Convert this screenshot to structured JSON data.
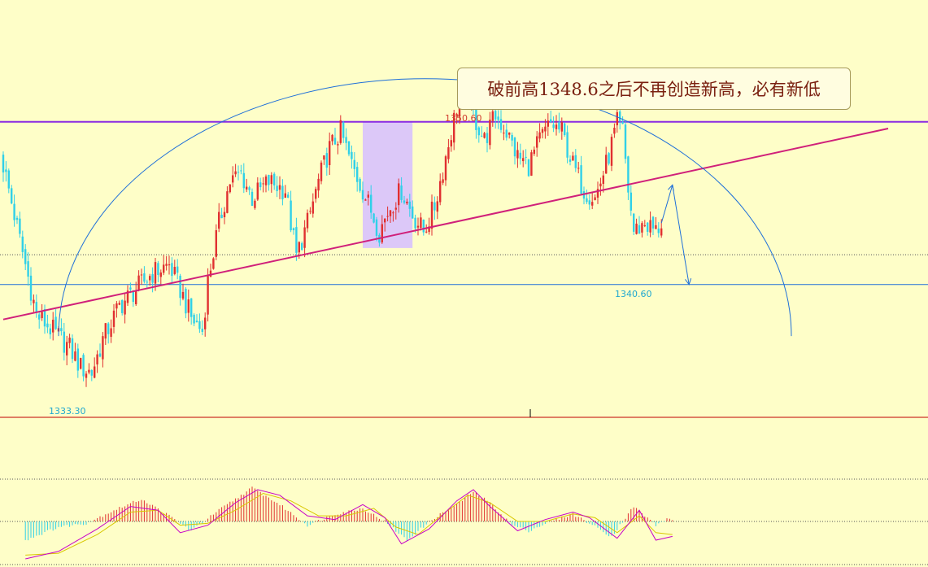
{
  "annotation": {
    "text": "破前高1348.6之后不再创造新高，必有新低"
  },
  "labels": {
    "high": "1350.60",
    "low": "1333.30",
    "recent_low": "1340.60"
  },
  "colors": {
    "background": "#fefec8",
    "candle_up": "#e03030",
    "candle_down": "#30d0e8",
    "resistance_line": "#8a2be2",
    "trend_line": "#d0207a",
    "arc": "#1e6fd9",
    "support_line": "#1e6fd9",
    "highlight_zone": "#dcc8f8",
    "panel_separator": "#c00000",
    "macd_dif": "#c800c8",
    "macd_dea": "#d8c800"
  },
  "chart_data": [
    {
      "type": "candlestick",
      "title": "",
      "xlabel": "",
      "ylabel": "",
      "ylim": [
        1331.0,
        1353.0
      ],
      "grid": false,
      "close_path": [
        [
          0,
          1346.0
        ],
        [
          6,
          1341.5
        ],
        [
          12,
          1337.0
        ],
        [
          18,
          1336.0
        ],
        [
          24,
          1335.0
        ],
        [
          28,
          1333.8
        ],
        [
          32,
          1333.5
        ],
        [
          36,
          1335.5
        ],
        [
          42,
          1337.5
        ],
        [
          48,
          1338.5
        ],
        [
          54,
          1339.5
        ],
        [
          60,
          1340.0
        ],
        [
          64,
          1338.5
        ],
        [
          68,
          1336.8
        ],
        [
          72,
          1336.0
        ],
        [
          74,
          1339.0
        ],
        [
          78,
          1342.5
        ],
        [
          82,
          1345.0
        ],
        [
          86,
          1345.5
        ],
        [
          90,
          1344.0
        ],
        [
          96,
          1345.0
        ],
        [
          102,
          1344.5
        ],
        [
          106,
          1340.5
        ],
        [
          110,
          1342.5
        ],
        [
          114,
          1345.0
        ],
        [
          118,
          1347.0
        ],
        [
          122,
          1348.0
        ],
        [
          126,
          1346.0
        ],
        [
          130,
          1344.5
        ],
        [
          136,
          1342.0
        ],
        [
          140,
          1343.5
        ],
        [
          144,
          1344.5
        ],
        [
          148,
          1343.0
        ],
        [
          152,
          1342.0
        ],
        [
          156,
          1343.5
        ],
        [
          160,
          1346.5
        ],
        [
          164,
          1349.5
        ],
        [
          168,
          1350.3
        ],
        [
          170,
          1349.0
        ],
        [
          174,
          1347.5
        ],
        [
          178,
          1349.0
        ],
        [
          182,
          1348.0
        ],
        [
          186,
          1346.5
        ],
        [
          190,
          1346.0
        ],
        [
          194,
          1347.5
        ],
        [
          198,
          1348.5
        ],
        [
          202,
          1348.0
        ],
        [
          206,
          1346.0
        ],
        [
          210,
          1344.5
        ],
        [
          214,
          1344.0
        ],
        [
          218,
          1346.0
        ],
        [
          222,
          1348.5
        ],
        [
          224,
          1348.0
        ],
        [
          226,
          1344.5
        ],
        [
          228,
          1342.0
        ],
        [
          232,
          1342.5
        ],
        [
          236,
          1342.0
        ],
        [
          238,
          1342.5
        ]
      ],
      "levels": {
        "resistance": 1348.6,
        "support": 1338.8,
        "lower_dotted": 1340.6
      },
      "highlight_zone": {
        "x_from": 130,
        "x_to": 148,
        "y_from": 1341.0,
        "y_to": 1348.6
      },
      "trend_line": {
        "from": [
          0,
          1336.7
        ],
        "to": [
          320,
          1348.2
        ]
      },
      "arc": {
        "x_from": 20,
        "x_to": 285,
        "peak_x": 150,
        "peak": 1351.2,
        "end": 1335.7
      },
      "projection": [
        [
          238,
          1342.5
        ],
        [
          242,
          1344.8
        ],
        [
          248,
          1338.8
        ]
      ]
    },
    {
      "type": "macd",
      "title": "",
      "ylim": [
        -1.0,
        1.0
      ],
      "zero": 0,
      "histogram_path": [
        [
          8,
          -0.5
        ],
        [
          20,
          -0.15
        ],
        [
          30,
          -0.05
        ],
        [
          40,
          0.3
        ],
        [
          50,
          0.6
        ],
        [
          60,
          0.15
        ],
        [
          68,
          -0.25
        ],
        [
          78,
          0.3
        ],
        [
          90,
          0.9
        ],
        [
          100,
          0.45
        ],
        [
          110,
          -0.1
        ],
        [
          120,
          0.2
        ],
        [
          130,
          0.35
        ],
        [
          138,
          0.0
        ],
        [
          146,
          -0.5
        ],
        [
          156,
          0.1
        ],
        [
          164,
          0.45
        ],
        [
          170,
          0.8
        ],
        [
          176,
          0.5
        ],
        [
          184,
          -0.1
        ],
        [
          190,
          -0.25
        ],
        [
          198,
          0.0
        ],
        [
          206,
          0.2
        ],
        [
          212,
          -0.05
        ],
        [
          220,
          -0.4
        ],
        [
          228,
          0.4
        ],
        [
          236,
          -0.1
        ],
        [
          240,
          0.05
        ]
      ],
      "series": [
        {
          "values": [
            [
              8,
              -1.0
            ],
            [
              20,
              -0.8
            ],
            [
              34,
              -0.2
            ],
            [
              46,
              0.4
            ],
            [
              56,
              0.3
            ],
            [
              64,
              -0.3
            ],
            [
              74,
              -0.1
            ],
            [
              84,
              0.5
            ],
            [
              92,
              0.85
            ],
            [
              100,
              0.7
            ],
            [
              110,
              0.15
            ],
            [
              120,
              0.05
            ],
            [
              130,
              0.45
            ],
            [
              138,
              0.1
            ],
            [
              144,
              -0.6
            ],
            [
              154,
              -0.2
            ],
            [
              164,
              0.55
            ],
            [
              170,
              0.85
            ],
            [
              176,
              0.4
            ],
            [
              186,
              -0.25
            ],
            [
              196,
              0.05
            ],
            [
              206,
              0.25
            ],
            [
              212,
              0.1
            ],
            [
              222,
              -0.45
            ],
            [
              230,
              0.3
            ],
            [
              236,
              -0.5
            ],
            [
              242,
              -0.4
            ]
          ]
        },
        {
          "values": [
            [
              8,
              -0.9
            ],
            [
              20,
              -0.85
            ],
            [
              34,
              -0.35
            ],
            [
              46,
              0.25
            ],
            [
              56,
              0.3
            ],
            [
              64,
              -0.1
            ],
            [
              74,
              -0.05
            ],
            [
              84,
              0.3
            ],
            [
              94,
              0.75
            ],
            [
              104,
              0.55
            ],
            [
              114,
              0.15
            ],
            [
              124,
              0.15
            ],
            [
              134,
              0.35
            ],
            [
              142,
              -0.15
            ],
            [
              150,
              -0.35
            ],
            [
              160,
              0.25
            ],
            [
              168,
              0.7
            ],
            [
              176,
              0.5
            ],
            [
              186,
              0.0
            ],
            [
              196,
              0.0
            ],
            [
              206,
              0.2
            ],
            [
              214,
              0.1
            ],
            [
              222,
              -0.3
            ],
            [
              230,
              0.15
            ],
            [
              236,
              -0.3
            ],
            [
              242,
              -0.35
            ]
          ]
        }
      ]
    }
  ]
}
